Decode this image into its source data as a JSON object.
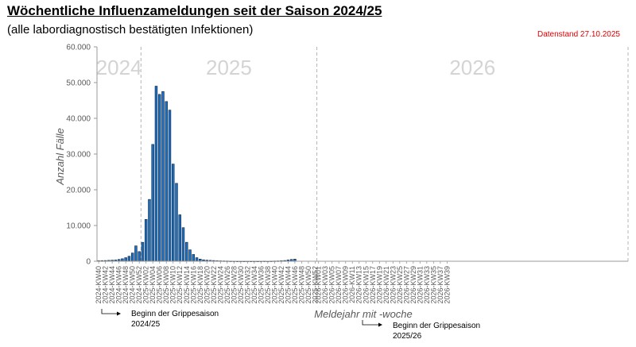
{
  "header": {
    "title": "Wöchentliche Influenzameldungen seit der Saison 2024/25",
    "subtitle": "(alle labordiagnostisch bestätigten Infektionen)",
    "datenstand": "Datenstand 27.10.2025"
  },
  "annotations": {
    "season_2024": {
      "line1": "Beginn der Grippesaison",
      "line2": "2024/25"
    },
    "season_2025": {
      "line1": "Beginn der Grippesaison",
      "line2": "2025/26"
    }
  },
  "colors": {
    "bar_fill": "#1f6fbf",
    "bar_stroke": "#0b2540",
    "year_label": "#d4d4d4",
    "divider": "#b5b5b5",
    "datenstand": "#e00000"
  },
  "chart_data": {
    "type": "bar",
    "xlabel": "Meldejahr mit -woche",
    "ylabel": "Anzahl Fälle",
    "ylim": [
      0,
      60000
    ],
    "yticks": [
      "0",
      "10.000",
      "20.000",
      "30.000",
      "40.000",
      "50.000",
      "60.000"
    ],
    "grid": false,
    "year_labels": [
      "2024",
      "2025",
      "2026"
    ],
    "x_tick_labels": [
      "2024-KW40",
      "2024-KW42",
      "2024-KW44",
      "2024-KW46",
      "2024-KW48",
      "2024-KW50",
      "2024-KW52",
      "2025-KW02",
      "2025-KW04",
      "2025-KW06",
      "2025-KW08",
      "2025-KW10",
      "2025-KW12",
      "2025-KW14",
      "2025-KW16",
      "2025-KW18",
      "2025-KW20",
      "2025-KW22",
      "2025-KW24",
      "2025-KW26",
      "2025-KW28",
      "2025-KW30",
      "2025-KW32",
      "2025-KW34",
      "2025-KW36",
      "2025-KW38",
      "2025-KW40",
      "2025-KW42",
      "2025-KW44",
      "2025-KW46",
      "2025-KW48",
      "2025-KW50",
      "2025-KW52",
      "2026-KW01",
      "2026-KW03",
      "2026-KW05",
      "2026-KW07",
      "2026-KW09",
      "2026-KW11",
      "2026-KW13",
      "2026-KW15",
      "2026-KW17",
      "2026-KW19",
      "2026-KW21",
      "2026-KW23",
      "2026-KW25",
      "2026-KW27",
      "2026-KW29",
      "2026-KW31",
      "2026-KW33",
      "2026-KW35",
      "2026-KW37",
      "2026-KW39"
    ],
    "values": [
      150,
      180,
      200,
      250,
      300,
      350,
      500,
      700,
      1000,
      1400,
      2300,
      4300,
      2700,
      5300,
      11700,
      17300,
      32700,
      49000,
      46700,
      47500,
      44700,
      42300,
      27200,
      21800,
      13000,
      9400,
      5300,
      3200,
      1900,
      1000,
      600,
      400,
      300,
      250,
      200,
      150,
      120,
      100,
      80,
      60,
      50,
      40,
      40,
      40,
      40,
      40,
      40,
      40,
      40,
      60,
      40,
      60,
      80,
      100,
      150,
      200,
      350,
      500,
      600
    ],
    "total_weeks": 157
  }
}
